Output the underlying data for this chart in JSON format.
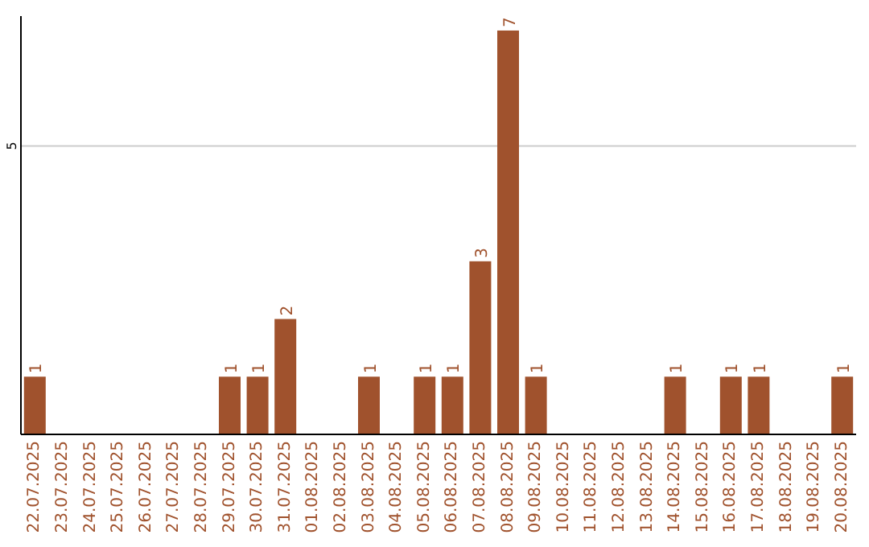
{
  "chart_data": {
    "type": "bar",
    "categories": [
      "22.07.2025",
      "23.07.2025",
      "24.07.2025",
      "25.07.2025",
      "26.07.2025",
      "27.07.2025",
      "28.07.2025",
      "29.07.2025",
      "30.07.2025",
      "31.07.2025",
      "01.08.2025",
      "02.08.2025",
      "03.08.2025",
      "04.08.2025",
      "05.08.2025",
      "06.08.2025",
      "07.08.2025",
      "08.08.2025",
      "09.08.2025",
      "10.08.2025",
      "11.08.2025",
      "12.08.2025",
      "13.08.2025",
      "14.08.2025",
      "15.08.2025",
      "16.08.2025",
      "17.08.2025",
      "18.08.2025",
      "19.08.2025",
      "20.08.2025"
    ],
    "values": [
      1,
      0,
      0,
      0,
      0,
      0,
      0,
      1,
      1,
      2,
      0,
      0,
      1,
      0,
      1,
      1,
      3,
      7,
      1,
      0,
      0,
      0,
      0,
      1,
      0,
      1,
      1,
      0,
      0,
      1
    ],
    "value_labels": [
      "1",
      null,
      null,
      null,
      null,
      null,
      null,
      "1",
      "1",
      "2",
      null,
      null,
      "1",
      null,
      "1",
      "1",
      "3",
      "7",
      "1",
      null,
      null,
      null,
      null,
      "1",
      null,
      "1",
      "1",
      null,
      null,
      "1"
    ],
    "color": "#a0522d",
    "ylim": [
      0,
      7.25
    ],
    "yticks": [
      5
    ],
    "grid": "y"
  }
}
